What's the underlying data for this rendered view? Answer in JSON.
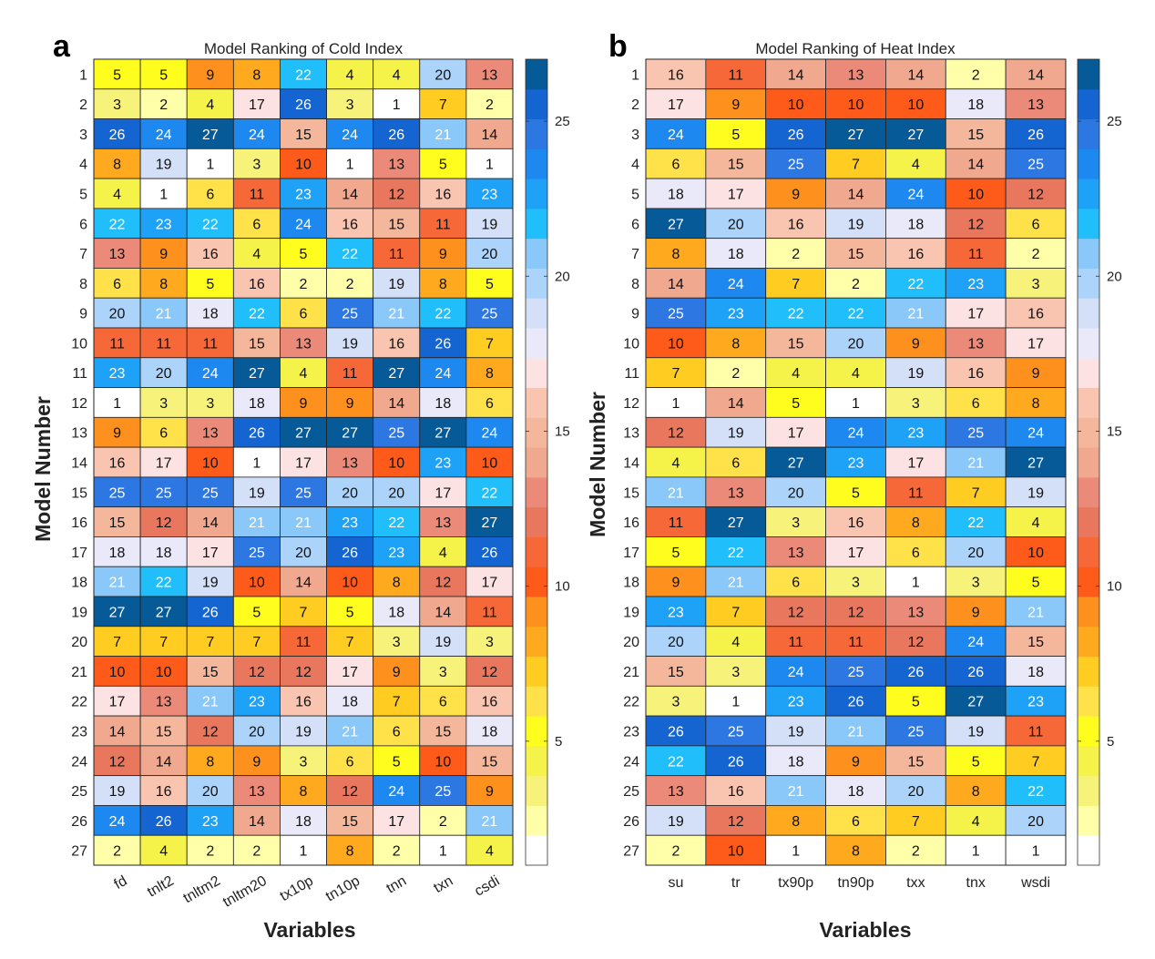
{
  "chart_data": [
    {
      "type": "heatmap",
      "panel_label": "a",
      "title": "Model Ranking of Cold Index",
      "xlabel": "Variables",
      "ylabel": "Model Number",
      "x": [
        "fd",
        "tnlt2",
        "tnltm2",
        "tnltm20",
        "tx10p",
        "tn10p",
        "tnn",
        "txn",
        "csdi"
      ],
      "y": [
        1,
        2,
        3,
        4,
        5,
        6,
        7,
        8,
        9,
        10,
        11,
        12,
        13,
        14,
        15,
        16,
        17,
        18,
        19,
        20,
        21,
        22,
        23,
        24,
        25,
        26,
        27
      ],
      "values": [
        [
          5,
          5,
          9,
          8,
          22,
          4,
          4,
          20,
          13
        ],
        [
          3,
          2,
          4,
          17,
          26,
          3,
          1,
          7,
          2
        ],
        [
          26,
          24,
          27,
          24,
          15,
          24,
          26,
          21,
          14
        ],
        [
          8,
          19,
          1,
          3,
          10,
          1,
          13,
          5,
          1
        ],
        [
          4,
          1,
          6,
          11,
          23,
          14,
          12,
          16,
          23
        ],
        [
          22,
          23,
          22,
          6,
          24,
          16,
          15,
          11,
          19
        ],
        [
          13,
          9,
          16,
          4,
          5,
          22,
          11,
          9,
          20
        ],
        [
          6,
          8,
          5,
          16,
          2,
          2,
          19,
          8,
          5
        ],
        [
          20,
          21,
          18,
          22,
          6,
          25,
          21,
          22,
          25
        ],
        [
          11,
          11,
          11,
          15,
          13,
          19,
          16,
          26,
          7
        ],
        [
          23,
          20,
          24,
          27,
          4,
          11,
          27,
          24,
          8
        ],
        [
          1,
          3,
          3,
          18,
          9,
          9,
          14,
          18,
          6
        ],
        [
          9,
          6,
          13,
          26,
          27,
          27,
          25,
          27,
          24
        ],
        [
          16,
          17,
          10,
          1,
          17,
          13,
          10,
          23,
          10
        ],
        [
          25,
          25,
          25,
          19,
          25,
          20,
          20,
          17,
          22
        ],
        [
          15,
          12,
          14,
          21,
          21,
          23,
          22,
          13,
          27
        ],
        [
          18,
          18,
          17,
          25,
          20,
          26,
          23,
          4,
          26
        ],
        [
          21,
          22,
          19,
          10,
          14,
          10,
          8,
          12,
          17
        ],
        [
          27,
          27,
          26,
          5,
          7,
          5,
          18,
          14,
          11
        ],
        [
          7,
          7,
          7,
          7,
          11,
          7,
          3,
          19,
          3
        ],
        [
          10,
          10,
          15,
          12,
          12,
          17,
          9,
          3,
          12
        ],
        [
          17,
          13,
          21,
          23,
          16,
          18,
          7,
          6,
          16
        ],
        [
          14,
          15,
          12,
          20,
          19,
          21,
          6,
          15,
          18
        ],
        [
          12,
          14,
          8,
          9,
          3,
          6,
          5,
          10,
          15
        ],
        [
          19,
          16,
          20,
          13,
          8,
          12,
          24,
          25,
          9
        ],
        [
          24,
          26,
          23,
          14,
          18,
          15,
          17,
          2,
          21
        ],
        [
          2,
          4,
          2,
          2,
          1,
          8,
          2,
          1,
          4
        ]
      ],
      "colorbar_ticks": [
        5,
        10,
        15,
        20,
        25
      ],
      "colorbar_range": [
        1,
        27
      ]
    },
    {
      "type": "heatmap",
      "panel_label": "b",
      "title": "Model Ranking of Heat Index",
      "xlabel": "Variables",
      "ylabel": "Model Number",
      "x": [
        "su",
        "tr",
        "tx90p",
        "tn90p",
        "txx",
        "tnx",
        "wsdi"
      ],
      "y": [
        1,
        2,
        3,
        4,
        5,
        6,
        7,
        8,
        9,
        10,
        11,
        12,
        13,
        14,
        15,
        16,
        17,
        18,
        19,
        20,
        21,
        22,
        23,
        24,
        25,
        26,
        27
      ],
      "values": [
        [
          16,
          11,
          14,
          13,
          14,
          2,
          14
        ],
        [
          17,
          9,
          10,
          10,
          10,
          18,
          13
        ],
        [
          24,
          5,
          26,
          27,
          27,
          15,
          26
        ],
        [
          6,
          15,
          25,
          7,
          4,
          14,
          25
        ],
        [
          18,
          17,
          9,
          14,
          24,
          10,
          12
        ],
        [
          27,
          20,
          16,
          19,
          18,
          12,
          6
        ],
        [
          8,
          18,
          2,
          15,
          16,
          11,
          2
        ],
        [
          14,
          24,
          7,
          2,
          22,
          23,
          3
        ],
        [
          25,
          23,
          22,
          22,
          21,
          17,
          16
        ],
        [
          10,
          8,
          15,
          20,
          9,
          13,
          17
        ],
        [
          7,
          2,
          4,
          4,
          19,
          16,
          9
        ],
        [
          1,
          14,
          5,
          1,
          3,
          6,
          8
        ],
        [
          12,
          19,
          17,
          24,
          23,
          25,
          24
        ],
        [
          4,
          6,
          27,
          23,
          17,
          21,
          27
        ],
        [
          21,
          13,
          20,
          5,
          11,
          7,
          19
        ],
        [
          11,
          27,
          3,
          16,
          8,
          22,
          4
        ],
        [
          5,
          22,
          13,
          17,
          6,
          20,
          10
        ],
        [
          9,
          21,
          6,
          3,
          1,
          3,
          5
        ],
        [
          23,
          7,
          12,
          12,
          13,
          9,
          21
        ],
        [
          20,
          4,
          11,
          11,
          12,
          24,
          15
        ],
        [
          15,
          3,
          24,
          25,
          26,
          26,
          18
        ],
        [
          3,
          1,
          23,
          26,
          5,
          27,
          23
        ],
        [
          26,
          25,
          19,
          21,
          25,
          19,
          11
        ],
        [
          22,
          26,
          18,
          9,
          15,
          5,
          7
        ],
        [
          13,
          16,
          21,
          18,
          20,
          8,
          22
        ],
        [
          19,
          12,
          8,
          6,
          7,
          4,
          20
        ],
        [
          2,
          10,
          1,
          8,
          2,
          1,
          1
        ]
      ],
      "colorbar_ticks": [
        5,
        10,
        15,
        20,
        25
      ],
      "colorbar_range": [
        1,
        27
      ]
    }
  ],
  "colormap": [
    "#ffffff",
    "#ffffaa",
    "#f7f27a",
    "#f5f24a",
    "#fffd1e",
    "#ffe14a",
    "#ffcc22",
    "#ffaa1e",
    "#fe901e",
    "#fe5a1a",
    "#f76838",
    "#e9775e",
    "#eb8a78",
    "#f0a88f",
    "#f4b79c",
    "#f9c5b1",
    "#fde2e3",
    "#e9e9f9",
    "#d3e0f8",
    "#acd4fb",
    "#8ac8fa",
    "#20bffb",
    "#1ea2f8",
    "#1c88f0",
    "#2d77e3",
    "#1464d1",
    "#065a98"
  ],
  "dark_text_threshold": 0
}
